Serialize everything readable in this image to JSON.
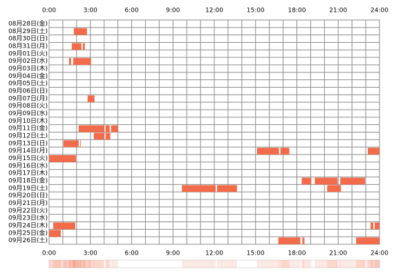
{
  "chart_data": {
    "type": "timeline",
    "color": "#f26b4a",
    "xlim": [
      0,
      24
    ],
    "xticks": [
      {
        "value": 0,
        "label": "0:00"
      },
      {
        "value": 3,
        "label": "3:00"
      },
      {
        "value": 6,
        "label": "6:00"
      },
      {
        "value": 9,
        "label": "9:00"
      },
      {
        "value": 12,
        "label": "12:00"
      },
      {
        "value": 15,
        "label": "15:00"
      },
      {
        "value": 18,
        "label": "18:00"
      },
      {
        "value": 21,
        "label": "21:00"
      },
      {
        "value": 24,
        "label": "24:00"
      }
    ],
    "xminorticks": [
      0,
      1,
      2,
      3,
      4,
      5,
      6,
      7,
      8,
      9,
      10,
      11,
      12,
      13,
      14,
      15,
      16,
      17,
      18,
      19,
      20,
      21,
      22,
      23,
      24
    ],
    "categories": [
      "08月28日(金)",
      "08月29日(土)",
      "08月30日(日)",
      "08月31日(月)",
      "09月01日(火)",
      "09月02日(水)",
      "09月03日(木)",
      "09月04日(金)",
      "09月05日(土)",
      "09月06日(日)",
      "09月07日(月)",
      "09月08日(火)",
      "09月09日(水)",
      "09月10日(木)",
      "09月11日(金)",
      "09月12日(土)",
      "09月13日(日)",
      "09月14日(月)",
      "09月15日(火)",
      "09月16日(水)",
      "09月17日(木)",
      "09月18日(金)",
      "09月19日(土)",
      "09月20日(日)",
      "09月21日(月)",
      "09月22日(火)",
      "09月23日(水)",
      "09月24日(木)",
      "09月25日(金)",
      "09月26日(土)"
    ],
    "segments": [
      [],
      [
        [
          1.8,
          2.75
        ]
      ],
      [],
      [
        [
          1.65,
          2.35
        ],
        [
          2.45,
          2.6
        ]
      ],
      [],
      [
        [
          1.45,
          1.6
        ],
        [
          1.75,
          3.05
        ]
      ],
      [],
      [],
      [],
      [],
      [
        [
          2.8,
          3.3
        ]
      ],
      [],
      [],
      [],
      [
        [
          2.15,
          4.0
        ],
        [
          4.1,
          4.4
        ],
        [
          4.5,
          5.0
        ]
      ],
      [
        [
          3.25,
          4.0
        ],
        [
          4.1,
          4.45
        ]
      ],
      [
        [
          1.05,
          2.15
        ],
        [
          2.25,
          2.3
        ]
      ],
      [
        [
          15.1,
          16.7
        ],
        [
          16.8,
          17.45
        ],
        [
          23.15,
          24
        ]
      ],
      [
        [
          0,
          1.95
        ]
      ],
      [],
      [],
      [
        [
          18.35,
          19.05
        ],
        [
          19.3,
          20.95
        ],
        [
          21.15,
          22.95
        ]
      ],
      [
        [
          9.65,
          12.1
        ],
        [
          12.2,
          13.65
        ],
        [
          20.2,
          21.2
        ]
      ],
      [],
      [],
      [],
      [],
      [
        [
          0.3,
          1.9
        ],
        [
          23.35,
          23.55
        ],
        [
          23.65,
          24
        ]
      ],
      [
        [
          0,
          0.85
        ]
      ],
      [
        [
          16.65,
          18.25
        ],
        [
          18.4,
          18.55
        ],
        [
          22.3,
          24
        ]
      ]
    ]
  }
}
